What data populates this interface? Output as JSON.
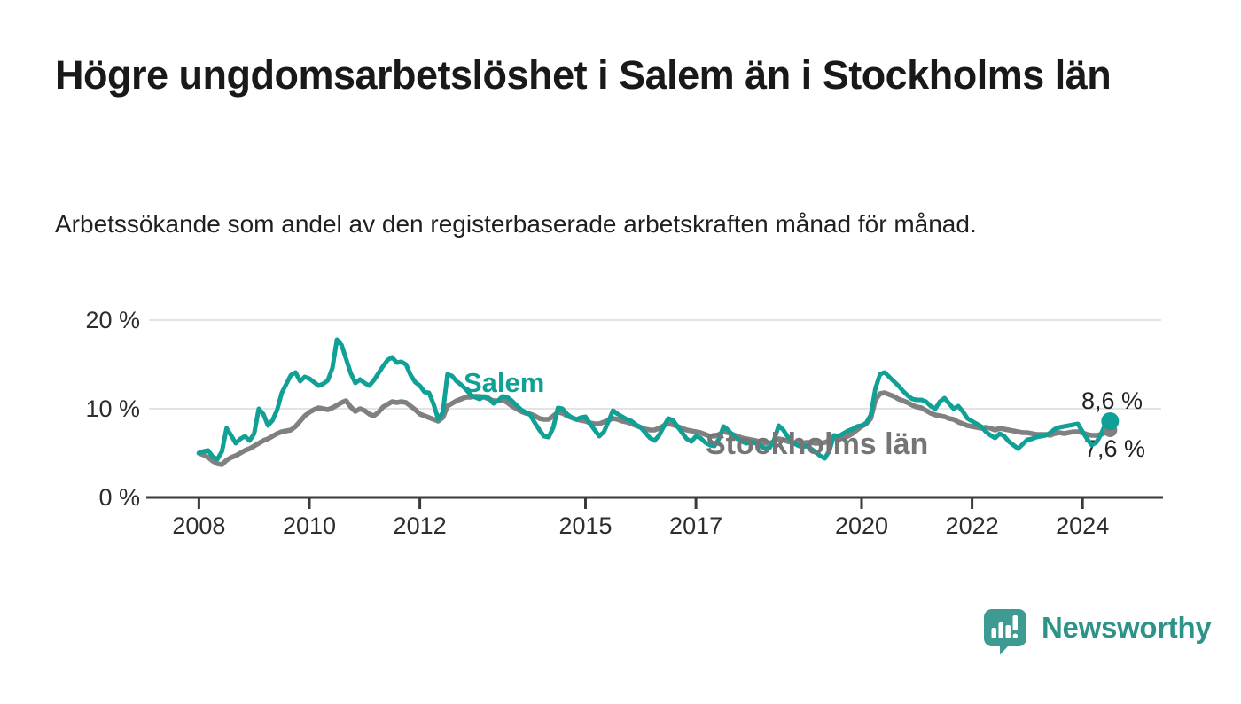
{
  "header": {
    "title": "Högre ungdomsarbetslöshet i Salem än i Stockholms län",
    "subtitle": "Arbetssökande som andel av den registerbaserade arbetskraften månad för månad."
  },
  "footer": {
    "brand": "Newsworthy",
    "brand_color": "#2D9389",
    "logo_icon": "bar-chart-speech-bubble-icon",
    "logo_bubble_color": "#3D9B94"
  },
  "chart_data": {
    "type": "line",
    "unit": "%",
    "frequency": "monthly",
    "x_start": "2008-01",
    "x_end": "2024-07",
    "ylim": [
      0,
      21
    ],
    "grid": "horizontal",
    "legend": "inline-labels",
    "axis_color": "#3a3a3a",
    "grid_color": "#dcdcdc",
    "x_ticks": [
      {
        "year": 2008,
        "label": "2008"
      },
      {
        "year": 2010,
        "label": "2010"
      },
      {
        "year": 2012,
        "label": "2012"
      },
      {
        "year": 2015,
        "label": "2015"
      },
      {
        "year": 2017,
        "label": "2017"
      },
      {
        "year": 2020,
        "label": "2020"
      },
      {
        "year": 2022,
        "label": "2022"
      },
      {
        "year": 2024,
        "label": "2024"
      }
    ],
    "y_ticks": [
      {
        "value": 0,
        "label": "0 %"
      },
      {
        "value": 10,
        "label": "10 %"
      },
      {
        "value": 20,
        "label": "20 %"
      }
    ],
    "series": [
      {
        "name": "Salem",
        "color": "#11A096",
        "label_color": "#11A096",
        "end_label": "8,6 %",
        "latest_value": 8.6,
        "values": [
          5.0,
          5.2,
          5.3,
          4.6,
          4.3,
          5.2,
          7.8,
          7.0,
          6.1,
          6.6,
          6.9,
          6.4,
          7.2,
          10.0,
          9.4,
          8.1,
          8.7,
          9.9,
          11.8,
          12.8,
          13.8,
          14.1,
          13.1,
          13.6,
          13.4,
          13.0,
          12.6,
          12.8,
          13.2,
          14.6,
          17.8,
          17.2,
          15.6,
          14.0,
          12.9,
          13.3,
          12.9,
          12.6,
          13.2,
          14.0,
          14.8,
          15.5,
          15.8,
          15.2,
          15.3,
          15.0,
          13.8,
          13.0,
          12.6,
          11.9,
          11.8,
          10.5,
          8.8,
          9.6,
          13.9,
          13.7,
          13.1,
          12.7,
          12.2,
          11.6,
          11.3,
          11.1,
          11.4,
          11.2,
          10.6,
          10.9,
          11.4,
          11.3,
          10.9,
          10.4,
          9.9,
          9.6,
          9.3,
          8.4,
          7.6,
          6.9,
          6.8,
          7.9,
          10.1,
          10.0,
          9.4,
          9.0,
          8.8,
          9.0,
          9.1,
          8.3,
          7.6,
          6.9,
          7.4,
          8.6,
          9.8,
          9.4,
          9.1,
          8.8,
          8.6,
          8.2,
          7.9,
          7.3,
          6.7,
          6.4,
          7.0,
          8.0,
          8.9,
          8.7,
          8.0,
          7.3,
          6.6,
          6.3,
          6.9,
          6.7,
          6.2,
          5.9,
          5.8,
          6.6,
          8.0,
          7.6,
          7.0,
          6.6,
          6.3,
          6.1,
          6.3,
          6.1,
          5.8,
          5.5,
          5.6,
          6.5,
          8.1,
          7.6,
          6.8,
          6.2,
          5.9,
          5.7,
          5.8,
          5.5,
          5.1,
          4.7,
          4.4,
          5.3,
          7.0,
          6.9,
          7.2,
          7.5,
          7.7,
          8.0,
          8.1,
          8.4,
          9.3,
          12.3,
          13.9,
          14.1,
          13.6,
          13.1,
          12.6,
          12.0,
          11.5,
          11.1,
          11.0,
          11.0,
          10.8,
          10.3,
          10.0,
          10.8,
          11.2,
          10.6,
          10.0,
          10.3,
          9.7,
          8.9,
          8.6,
          8.3,
          8.0,
          7.4,
          7.0,
          6.7,
          7.2,
          6.9,
          6.3,
          5.9,
          5.5,
          6.0,
          6.5,
          6.6,
          6.8,
          6.9,
          7.0,
          7.3,
          7.7,
          7.9,
          8.0,
          8.1,
          8.2,
          8.3,
          7.4,
          6.6,
          5.9,
          6.2,
          7.1,
          8.3,
          8.6
        ]
      },
      {
        "name": "Stockholms län",
        "color": "#808080",
        "label_color": "#757575",
        "end_label": "7,6 %",
        "latest_value": 7.6,
        "values": [
          5.0,
          4.8,
          4.5,
          4.1,
          3.8,
          3.7,
          4.2,
          4.5,
          4.7,
          5.0,
          5.3,
          5.5,
          5.8,
          6.1,
          6.4,
          6.6,
          6.9,
          7.2,
          7.4,
          7.5,
          7.6,
          8.0,
          8.6,
          9.2,
          9.6,
          9.9,
          10.1,
          10.0,
          9.9,
          10.1,
          10.4,
          10.7,
          10.9,
          10.2,
          9.7,
          10.0,
          9.8,
          9.4,
          9.2,
          9.6,
          10.2,
          10.5,
          10.8,
          10.7,
          10.8,
          10.7,
          10.3,
          9.9,
          9.4,
          9.2,
          9.0,
          8.8,
          8.6,
          9.0,
          10.3,
          10.6,
          10.9,
          11.1,
          11.3,
          11.3,
          11.4,
          11.4,
          11.3,
          11.1,
          10.9,
          10.9,
          11.0,
          10.7,
          10.3,
          10.0,
          9.7,
          9.5,
          9.4,
          9.2,
          8.9,
          8.8,
          8.8,
          9.2,
          9.6,
          9.5,
          9.2,
          9.0,
          8.8,
          8.7,
          8.6,
          8.4,
          8.3,
          8.3,
          8.5,
          8.7,
          8.9,
          8.8,
          8.6,
          8.5,
          8.3,
          8.1,
          7.9,
          7.7,
          7.6,
          7.6,
          7.8,
          8.1,
          8.3,
          8.2,
          8.0,
          7.8,
          7.6,
          7.5,
          7.4,
          7.3,
          7.1,
          6.9,
          6.9,
          7.1,
          7.4,
          7.3,
          7.1,
          6.9,
          6.7,
          6.6,
          6.5,
          6.4,
          6.2,
          6.1,
          6.1,
          6.3,
          6.6,
          6.5,
          6.3,
          6.2,
          6.1,
          6.1,
          6.2,
          6.2,
          6.1,
          6.1,
          6.2,
          6.4,
          6.7,
          6.7,
          6.7,
          6.9,
          7.2,
          7.6,
          8.0,
          8.3,
          8.9,
          11.0,
          11.7,
          11.8,
          11.6,
          11.4,
          11.1,
          10.9,
          10.7,
          10.4,
          10.2,
          10.1,
          9.8,
          9.5,
          9.3,
          9.2,
          9.1,
          8.9,
          8.8,
          8.5,
          8.3,
          8.1,
          8.0,
          7.9,
          7.8,
          7.9,
          7.8,
          7.6,
          7.8,
          7.7,
          7.6,
          7.5,
          7.4,
          7.3,
          7.3,
          7.2,
          7.1,
          7.1,
          7.1,
          7.0,
          7.2,
          7.3,
          7.2,
          7.3,
          7.4,
          7.4,
          7.3,
          7.1,
          7.0,
          7.0,
          7.1,
          7.3,
          7.6
        ]
      }
    ]
  }
}
